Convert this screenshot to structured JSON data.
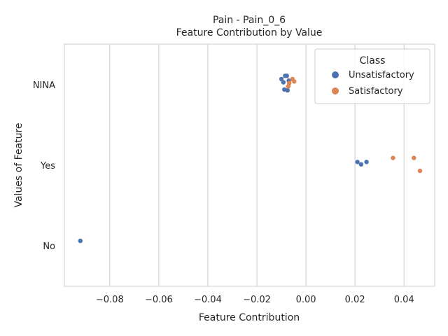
{
  "chart_data": {
    "type": "scatter",
    "title_line1": "Pain - Pain_0_6",
    "title_line2": "Feature Contribution by Value",
    "xlabel": "Feature Contribution",
    "ylabel": "Values of Feature",
    "categories": [
      "NINA",
      "Yes",
      "No"
    ],
    "xlim": [
      -0.0985,
      0.0525
    ],
    "xticks": [
      -0.08,
      -0.06,
      -0.04,
      -0.02,
      0.0,
      0.02,
      0.04
    ],
    "xtick_labels": [
      "−0.08",
      "−0.06",
      "−0.04",
      "−0.02",
      "0.00",
      "0.02",
      "0.04"
    ],
    "grid": "vertical",
    "legend": {
      "title": "Class",
      "position": "top-right",
      "entries": [
        {
          "label": "Unsatisfactory",
          "color": "#4c72b0"
        },
        {
          "label": "Satisfactory",
          "color": "#dd8452"
        }
      ]
    },
    "series": [
      {
        "name": "Unsatisfactory",
        "color": "#4c72b0",
        "points": [
          {
            "category": "NINA",
            "x": -0.0085,
            "jitter": -0.11
          },
          {
            "category": "NINA",
            "x": -0.0078,
            "jitter": -0.11
          },
          {
            "category": "NINA",
            "x": -0.01,
            "jitter": -0.07
          },
          {
            "category": "NINA",
            "x": -0.0092,
            "jitter": -0.03
          },
          {
            "category": "NINA",
            "x": -0.007,
            "jitter": -0.05
          },
          {
            "category": "NINA",
            "x": -0.0088,
            "jitter": 0.06
          },
          {
            "category": "NINA",
            "x": -0.0075,
            "jitter": 0.07
          },
          {
            "category": "Yes",
            "x": 0.021,
            "jitter": -0.04
          },
          {
            "category": "Yes",
            "x": 0.0225,
            "jitter": -0.01
          },
          {
            "category": "Yes",
            "x": 0.0247,
            "jitter": -0.04
          },
          {
            "category": "No",
            "x": -0.092,
            "jitter": -0.06
          }
        ]
      },
      {
        "name": "Satisfactory",
        "color": "#dd8452",
        "points": [
          {
            "category": "NINA",
            "x": -0.0055,
            "jitter": -0.07
          },
          {
            "category": "NINA",
            "x": -0.0048,
            "jitter": -0.04
          },
          {
            "category": "NINA",
            "x": -0.0068,
            "jitter": -0.02
          },
          {
            "category": "NINA",
            "x": -0.0072,
            "jitter": 0.02
          },
          {
            "category": "Yes",
            "x": 0.0355,
            "jitter": -0.09
          },
          {
            "category": "Yes",
            "x": 0.044,
            "jitter": -0.09
          },
          {
            "category": "Yes",
            "x": 0.0465,
            "jitter": 0.07
          }
        ]
      }
    ]
  }
}
